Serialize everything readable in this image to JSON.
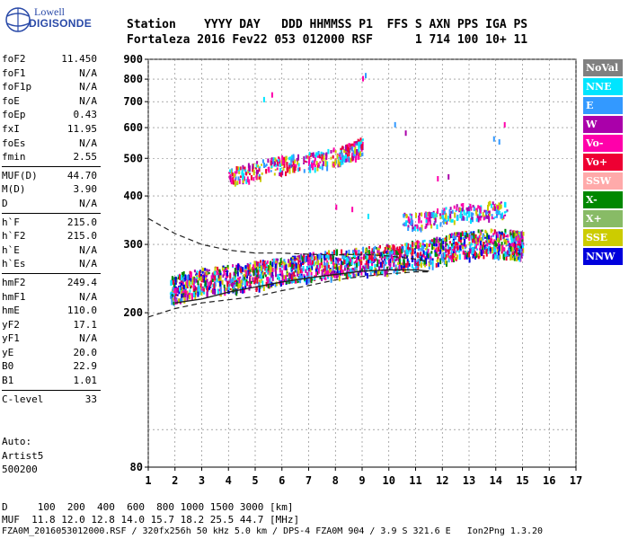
{
  "logo": {
    "top": "Lowell",
    "bottom": "DIGISONDE"
  },
  "header": {
    "line1": "Station    YYYY DAY   DDD HHMMSS P1  FFS S AXN PPS IGA PS",
    "line2": "Fortaleza 2016 Fev22 053 012000 RSF      1 714 100 10+ 11"
  },
  "params": {
    "group1": [
      {
        "name": "foF2",
        "value": "11.450"
      },
      {
        "name": "foF1",
        "value": "N/A"
      },
      {
        "name": "foF1p",
        "value": "N/A"
      },
      {
        "name": "foE",
        "value": "N/A"
      },
      {
        "name": "foEp",
        "value": "0.43"
      },
      {
        "name": "fxI",
        "value": "11.95"
      },
      {
        "name": "foEs",
        "value": "N/A"
      },
      {
        "name": "fmin",
        "value": "2.55"
      }
    ],
    "group2": [
      {
        "name": "MUF(D)",
        "value": "44.70"
      },
      {
        "name": "M(D)",
        "value": "3.90"
      },
      {
        "name": "D",
        "value": "N/A"
      }
    ],
    "group3": [
      {
        "name": "h`F",
        "value": "215.0"
      },
      {
        "name": "h`F2",
        "value": "215.0"
      },
      {
        "name": "h`E",
        "value": "N/A"
      },
      {
        "name": "h`Es",
        "value": "N/A"
      }
    ],
    "group4": [
      {
        "name": "hmF2",
        "value": "249.4"
      },
      {
        "name": "hmF1",
        "value": "N/A"
      },
      {
        "name": "hmE",
        "value": "110.0"
      },
      {
        "name": "yF2",
        "value": "17.1"
      },
      {
        "name": "yF1",
        "value": "N/A"
      },
      {
        "name": "yE",
        "value": "20.0"
      },
      {
        "name": "B0",
        "value": "22.9"
      },
      {
        "name": "B1",
        "value": "1.01"
      }
    ],
    "group5": [
      {
        "name": "C-level",
        "value": "33"
      }
    ]
  },
  "artist": {
    "line1": "Auto:",
    "line2": "Artist5",
    "line3": "500200"
  },
  "bottom": {
    "line1": "D     100  200  400  600  800 1000 1500 3000 [km]",
    "line2": "MUF  11.8 12.0 12.8 14.0 15.7 18.2 25.5 44.7 [MHz]",
    "line3": "FZA0M_2016053012000.RSF / 320fx256h 50 kHz 5.0 km / DPS-4 FZA0M 904 / 3.9 S 321.6 E   Ion2Png 1.3.20"
  },
  "legend": [
    {
      "label": "NoVal",
      "bg": "#808080",
      "fg": "#ffffff"
    },
    {
      "label": "NNE",
      "bg": "#00e5ff",
      "fg": "#ffffff"
    },
    {
      "label": "E",
      "bg": "#3399ff",
      "fg": "#ffffff"
    },
    {
      "label": "W",
      "bg": "#aa00aa",
      "fg": "#ffffff"
    },
    {
      "label": "Vo-",
      "bg": "#ff00aa",
      "fg": "#ffffff"
    },
    {
      "label": "Vo+",
      "bg": "#ee0033",
      "fg": "#ffffff"
    },
    {
      "label": "SSW",
      "bg": "#ffaaaa",
      "fg": "#ffffff"
    },
    {
      "label": "X-",
      "bg": "#008800",
      "fg": "#ffffff"
    },
    {
      "label": "X+",
      "bg": "#88bb66",
      "fg": "#ffffff"
    },
    {
      "label": "SSE",
      "bg": "#cccc00",
      "fg": "#ffffff"
    },
    {
      "label": "NNW",
      "bg": "#0000dd",
      "fg": "#ffffff"
    }
  ],
  "chart_data": {
    "type": "scatter",
    "title": "",
    "xlabel": "",
    "ylabel": "",
    "xlim": [
      1,
      17
    ],
    "ylim": [
      80,
      900
    ],
    "y_scale": "log",
    "grid": true,
    "x_ticks": [
      "1",
      "2",
      "3",
      "4",
      "5",
      "6",
      "7",
      "8",
      "9",
      "10",
      "11",
      "12",
      "13",
      "14",
      "15",
      "16",
      "17"
    ],
    "y_ticks": [
      {
        "value": 900,
        "label": "900"
      },
      {
        "value": 800,
        "label": "800"
      },
      {
        "value": 700,
        "label": "700"
      },
      {
        "value": 600,
        "label": "600"
      },
      {
        "value": 500,
        "label": "500"
      },
      {
        "value": 400,
        "label": "400"
      },
      {
        "value": 300,
        "label": "300"
      },
      {
        "value": 200,
        "label": "200"
      },
      {
        "value": 80,
        "label": "80"
      }
    ],
    "traces": [
      {
        "name": "O-trace band",
        "colors": [
          "#ee0033",
          "#ff00aa",
          "#3399ff",
          "#00e5ff",
          "#aa00aa",
          "#0000dd",
          "#008800",
          "#cccc00"
        ],
        "points": [
          [
            1.8,
            230
          ],
          [
            2.5,
            240
          ],
          [
            3.5,
            245
          ],
          [
            4.5,
            250
          ],
          [
            5.5,
            255
          ],
          [
            6.5,
            262
          ],
          [
            7.5,
            268
          ],
          [
            8.5,
            272
          ],
          [
            9.5,
            276
          ],
          [
            10.5,
            282
          ],
          [
            11.5,
            288
          ],
          [
            12.5,
            300
          ],
          [
            13.5,
            305
          ],
          [
            14.5,
            305
          ],
          [
            15,
            300
          ]
        ]
      },
      {
        "name": "second-hop band",
        "colors": [
          "#ee0033",
          "#aa00aa",
          "#ff00aa",
          "#00e5ff",
          "#3399ff",
          "#cccc00"
        ],
        "points": [
          [
            4.0,
            450
          ],
          [
            5.0,
            470
          ],
          [
            6.0,
            485
          ],
          [
            7.0,
            495
          ],
          [
            8.0,
            510
          ],
          [
            8.6,
            525
          ],
          [
            9.0,
            545
          ]
        ]
      },
      {
        "name": "upper-band traces",
        "colors": [
          "#00e5ff",
          "#aa00aa",
          "#ff00aa",
          "#cccc00",
          "#3399ff"
        ],
        "points": [
          [
            10.5,
            345
          ],
          [
            11.5,
            350
          ],
          [
            12.5,
            365
          ],
          [
            13.5,
            370
          ],
          [
            14.5,
            370
          ]
        ]
      }
    ],
    "profile_curves": [
      {
        "name": "upper dashed",
        "style": "dashed",
        "points": [
          [
            1,
            350
          ],
          [
            2,
            320
          ],
          [
            3,
            300
          ],
          [
            4,
            290
          ],
          [
            5,
            285
          ],
          [
            6,
            285
          ],
          [
            7,
            283
          ],
          [
            8,
            282
          ],
          [
            9,
            283
          ],
          [
            10,
            280
          ],
          [
            11,
            275
          ],
          [
            11.5,
            270
          ]
        ]
      },
      {
        "name": "lower dashed",
        "style": "dashed",
        "points": [
          [
            1,
            195
          ],
          [
            2,
            205
          ],
          [
            3,
            212
          ],
          [
            4,
            216
          ],
          [
            5,
            220
          ],
          [
            6,
            228
          ],
          [
            7,
            235
          ],
          [
            8,
            243
          ],
          [
            9,
            248
          ],
          [
            10,
            252
          ],
          [
            11,
            255
          ],
          [
            11.5,
            255
          ]
        ]
      },
      {
        "name": "solid trace",
        "style": "solid",
        "points": [
          [
            2,
            212
          ],
          [
            3,
            217
          ],
          [
            4,
            226
          ],
          [
            5,
            233
          ],
          [
            6,
            240
          ],
          [
            7,
            246
          ],
          [
            8,
            251
          ],
          [
            9,
            256
          ],
          [
            10,
            258
          ],
          [
            11,
            258
          ],
          [
            11.5,
            256
          ]
        ]
      }
    ]
  }
}
